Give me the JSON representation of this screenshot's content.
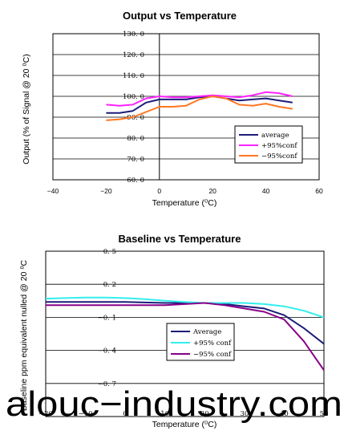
{
  "chart_data": [
    {
      "type": "line",
      "title": "Output vs Temperature",
      "xlabel": "Temperature (⁰C)",
      "ylabel": "Output (% of Signal @ 20 ⁰C)",
      "xlim": [
        -40,
        60
      ],
      "ylim": [
        60,
        130
      ],
      "x_ticks": [
        "−40",
        "−20",
        "0",
        "20",
        "40",
        "60"
      ],
      "y_ticks": [
        "60. 0",
        "70. 0",
        "80. 0",
        "90. 0",
        "100. 0",
        "110. 0",
        "120. 0",
        "130. 0"
      ],
      "grid": "horizontal",
      "legend_position": "bottom-right",
      "series": [
        {
          "name": "average",
          "color": "#1c1c7a",
          "x": [
            -20,
            -15,
            -10,
            -5,
            0,
            5,
            10,
            15,
            20,
            25,
            30,
            35,
            40,
            45,
            50
          ],
          "values": [
            92,
            92,
            93,
            97,
            98.5,
            98.5,
            98.5,
            99.5,
            100,
            99,
            98,
            98.5,
            99,
            98,
            97
          ]
        },
        {
          "name": "+95%conf",
          "color": "#ff22ff",
          "x": [
            -20,
            -15,
            -10,
            -5,
            0,
            5,
            10,
            15,
            20,
            25,
            30,
            35,
            40,
            45,
            50
          ],
          "values": [
            96,
            95.5,
            96,
            99,
            100,
            99.5,
            99.5,
            100,
            100.5,
            100,
            99.5,
            100.5,
            102,
            101.5,
            100
          ]
        },
        {
          "name": "−95%conf",
          "color": "#ff7722",
          "x": [
            -20,
            -15,
            -10,
            -5,
            0,
            5,
            10,
            15,
            20,
            25,
            30,
            35,
            40,
            45,
            50
          ],
          "values": [
            88.5,
            89,
            90,
            92.5,
            95,
            95,
            95.5,
            98.5,
            100,
            99,
            96,
            95.5,
            96.5,
            95,
            94
          ]
        }
      ]
    },
    {
      "type": "line",
      "title": "Baseline vs Temperature",
      "xlabel": "Temperature (⁰C)",
      "ylabel": "Baseline ppm equivalent nulled @ 20 ⁰C",
      "xlim": [
        -20,
        50
      ],
      "ylim": [
        -1.0,
        0.5
      ],
      "x_ticks": [
        "−20",
        "−10",
        "0",
        "10",
        "20",
        "30",
        "40",
        "50"
      ],
      "y_ticks": [
        "0. 5",
        "0. 2",
        "−0. 1",
        "−0. 4",
        "−0. 7"
      ],
      "grid": "horizontal",
      "legend_position": "center-right",
      "series": [
        {
          "name": "Average",
          "color": "#1c1c7a",
          "x": [
            -20,
            -15,
            -10,
            -5,
            0,
            5,
            10,
            15,
            20,
            25,
            30,
            35,
            40,
            45,
            50
          ],
          "values": [
            0.04,
            0.04,
            0.04,
            0.04,
            0.04,
            0.035,
            0.03,
            0.03,
            0.03,
            0.02,
            0.0,
            -0.02,
            -0.08,
            -0.2,
            -0.34
          ]
        },
        {
          "name": "+95% conf",
          "color": "#33eeee",
          "x": [
            -20,
            -15,
            -10,
            -5,
            0,
            5,
            10,
            15,
            20,
            25,
            30,
            35,
            40,
            45,
            50
          ],
          "values": [
            0.07,
            0.075,
            0.08,
            0.08,
            0.075,
            0.065,
            0.05,
            0.04,
            0.03,
            0.03,
            0.03,
            0.02,
            0.0,
            -0.04,
            -0.1
          ]
        },
        {
          "name": "−95% conf",
          "color": "#880088",
          "x": [
            -20,
            -15,
            -10,
            -5,
            0,
            5,
            10,
            15,
            20,
            25,
            30,
            35,
            40,
            45,
            50
          ],
          "values": [
            0.01,
            0.01,
            0.01,
            0.01,
            0.01,
            0.01,
            0.01,
            0.02,
            0.03,
            0.01,
            -0.02,
            -0.05,
            -0.12,
            -0.32,
            -0.58
          ]
        }
      ]
    }
  ],
  "watermark": "alouc−industry.com"
}
